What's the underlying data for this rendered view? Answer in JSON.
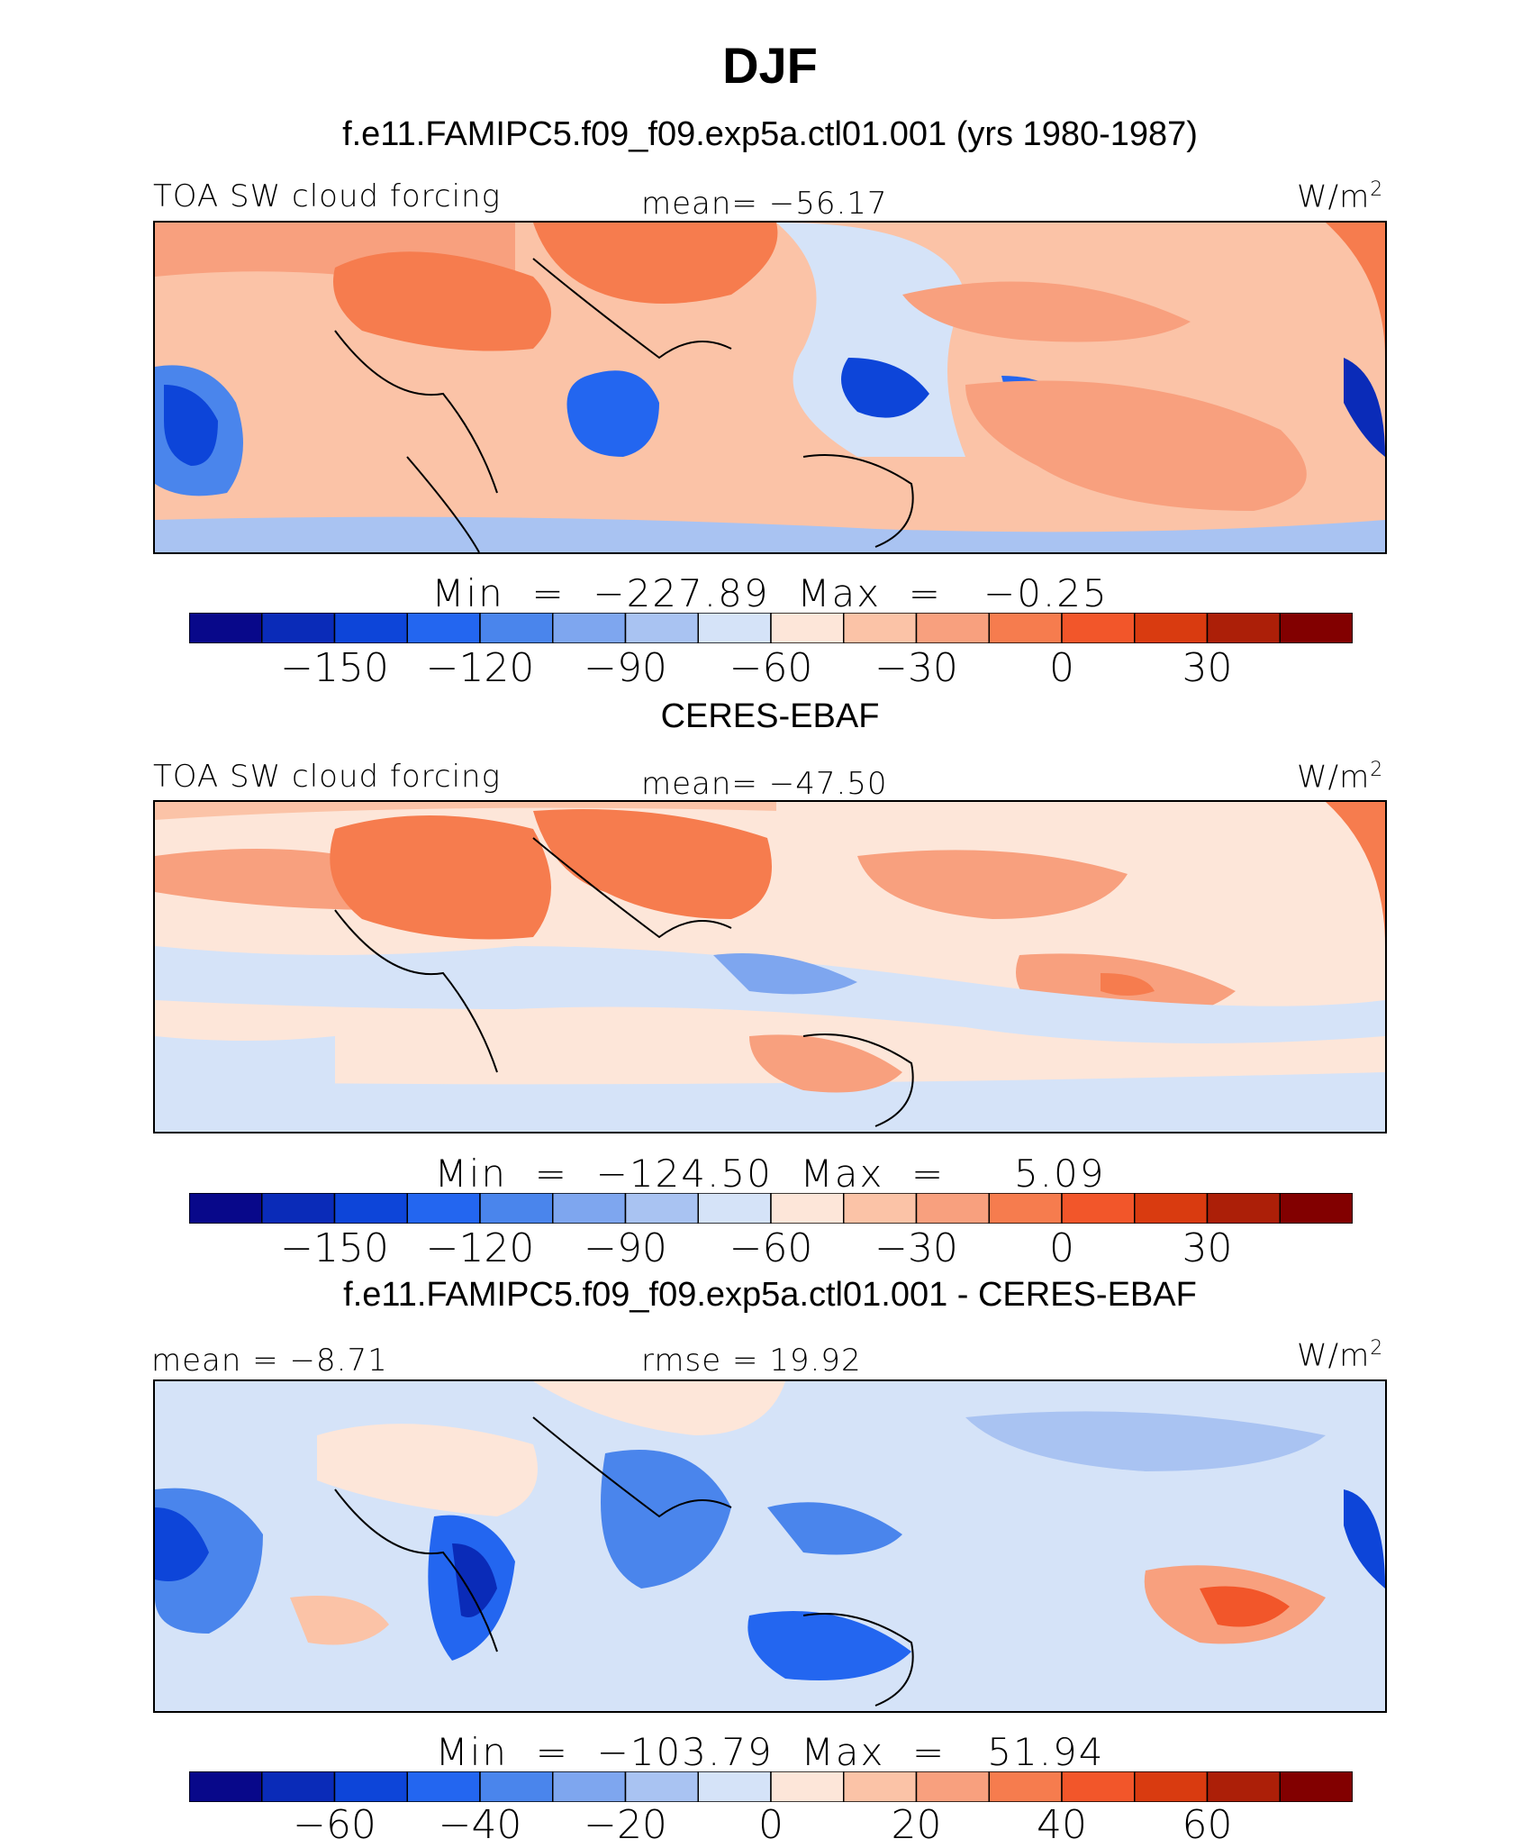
{
  "title": "DJF",
  "palette": {
    "colors": [
      "#08088a",
      "#0a2bb8",
      "#0d45d9",
      "#2366f0",
      "#4a85ec",
      "#7ea6ef",
      "#a9c3f2",
      "#d5e3f8",
      "#fde6d9",
      "#fbc3a7",
      "#f8a07e",
      "#f67c4e",
      "#f2562a",
      "#d93b10",
      "#ac1f08",
      "#820000"
    ]
  },
  "panels": [
    {
      "title": "f.e11.FAMIPC5.f09_f09.exp5a.ctl01.001 (yrs 1980-1987)",
      "left_label": "TOA SW cloud forcing",
      "center_label": "mean= −56.17",
      "units": "W/m",
      "units_sup": "2",
      "minmax": "Min  =  −227.89  Max  =   −0.25",
      "ticks": [
        "−150",
        "−120",
        "−90",
        "−60",
        "−30",
        "0",
        "30"
      ]
    },
    {
      "title": "CERES-EBAF",
      "left_label": "TOA SW cloud forcing",
      "center_label": "mean= −47.50",
      "units": "W/m",
      "units_sup": "2",
      "minmax": "Min  =  −124.50  Max  =     5.09",
      "ticks": [
        "−150",
        "−120",
        "−90",
        "−60",
        "−30",
        "0",
        "30"
      ]
    },
    {
      "title": "f.e11.FAMIPC5.f09_f09.exp5a.ctl01.001 - CERES-EBAF",
      "left_label": "mean  =   −8.71",
      "center_label": "rmse  =   19.92",
      "units": "W/m",
      "units_sup": "2",
      "minmax": "Min  =  −103.79  Max  =   51.94",
      "ticks": [
        "−60",
        "−40",
        "−20",
        "0",
        "20",
        "40",
        "60"
      ]
    }
  ],
  "chart_data": [
    {
      "type": "heatmap",
      "title": "f.e11.FAMIPC5.f09_f09.exp5a.ctl01.001 (yrs 1980-1987)",
      "variable": "TOA SW cloud forcing",
      "units": "W/m2",
      "mean": -56.17,
      "min": -227.89,
      "max": -0.25,
      "contour_levels": [
        -165,
        -150,
        -135,
        -120,
        -105,
        -90,
        -75,
        -60,
        -45,
        -30,
        -15,
        0,
        15,
        30,
        45
      ],
      "colorbar_tick_labels": [
        -150,
        -120,
        -90,
        -60,
        -30,
        0,
        30
      ]
    },
    {
      "type": "heatmap",
      "title": "CERES-EBAF",
      "variable": "TOA SW cloud forcing",
      "units": "W/m2",
      "mean": -47.5,
      "min": -124.5,
      "max": 5.09,
      "contour_levels": [
        -165,
        -150,
        -135,
        -120,
        -105,
        -90,
        -75,
        -60,
        -45,
        -30,
        -15,
        0,
        15,
        30,
        45
      ],
      "colorbar_tick_labels": [
        -150,
        -120,
        -90,
        -60,
        -30,
        0,
        30
      ]
    },
    {
      "type": "heatmap",
      "title": "f.e11.FAMIPC5.f09_f09.exp5a.ctl01.001 - CERES-EBAF",
      "units": "W/m2",
      "mean": -8.71,
      "rmse": 19.92,
      "min": -103.79,
      "max": 51.94,
      "contour_levels": [
        -70,
        -60,
        -50,
        -40,
        -30,
        -20,
        -10,
        0,
        10,
        20,
        30,
        40,
        50,
        60,
        70
      ],
      "colorbar_tick_labels": [
        -60,
        -40,
        -20,
        0,
        20,
        40,
        60
      ]
    }
  ]
}
